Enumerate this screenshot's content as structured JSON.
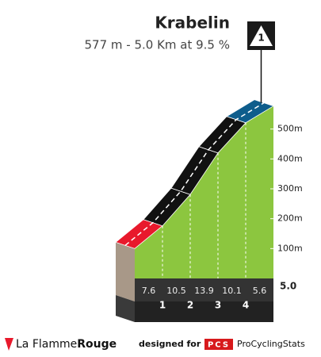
{
  "chart_data": {
    "type": "climb-profile",
    "title": "Krabelin",
    "subtitle": "577 m - 5.0 Km at 9.5 %",
    "category": "1",
    "x": [
      0,
      1,
      2,
      3,
      4,
      5
    ],
    "values": [
      100,
      176,
      281,
      420,
      521,
      577
    ],
    "gradients": [
      7.6,
      10.5,
      13.9,
      10.1,
      5.6
    ],
    "segment_colors": [
      "#e8192c",
      "#111111",
      "#111111",
      "#111111",
      "#0e5d8c"
    ],
    "color": "#8cc63f",
    "xlim": [
      0,
      5
    ],
    "xticks": [
      1,
      2,
      3,
      4,
      {
        "value": 5,
        "label": "5.0"
      }
    ],
    "ylim": [
      0,
      600
    ],
    "yticks": [
      {
        "value": 100,
        "label": "100m"
      },
      {
        "value": 200,
        "label": "200m"
      },
      {
        "value": 300,
        "label": "300m"
      },
      {
        "value": 400,
        "label": "400m"
      },
      {
        "value": 500,
        "label": "500m"
      }
    ]
  },
  "footer": {
    "brand": "La Flamme",
    "brand_bold": "Rouge",
    "designed": "designed for",
    "pcs": "PCS",
    "site": "ProCyclingStats"
  }
}
